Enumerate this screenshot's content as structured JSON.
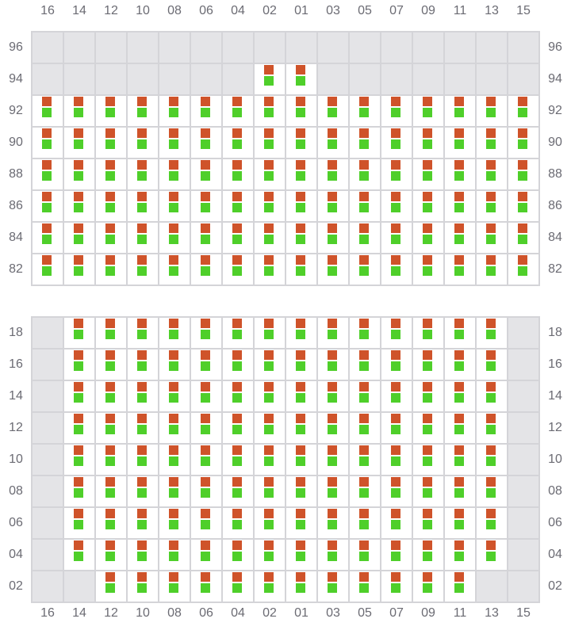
{
  "columns": [
    "16",
    "14",
    "12",
    "10",
    "08",
    "06",
    "04",
    "02",
    "01",
    "03",
    "05",
    "07",
    "09",
    "11",
    "13",
    "15"
  ],
  "colors": {
    "top_marker": "#cf532a",
    "bottom_marker": "#4fcf2a",
    "unavailable": "#e4e4e7",
    "available": "#ffffff"
  },
  "sections": [
    {
      "rows": [
        {
          "label": "96",
          "available": []
        },
        {
          "label": "94",
          "available": [
            "02",
            "01"
          ]
        },
        {
          "label": "92",
          "available": "all"
        },
        {
          "label": "90",
          "available": "all"
        },
        {
          "label": "88",
          "available": "all"
        },
        {
          "label": "86",
          "available": "all"
        },
        {
          "label": "84",
          "available": "all"
        },
        {
          "label": "82",
          "available": "all"
        }
      ]
    },
    {
      "rows": [
        {
          "label": "18",
          "available": [
            "14",
            "12",
            "10",
            "08",
            "06",
            "04",
            "02",
            "01",
            "03",
            "05",
            "07",
            "09",
            "11",
            "13"
          ]
        },
        {
          "label": "16",
          "available": [
            "14",
            "12",
            "10",
            "08",
            "06",
            "04",
            "02",
            "01",
            "03",
            "05",
            "07",
            "09",
            "11",
            "13"
          ]
        },
        {
          "label": "14",
          "available": [
            "14",
            "12",
            "10",
            "08",
            "06",
            "04",
            "02",
            "01",
            "03",
            "05",
            "07",
            "09",
            "11",
            "13"
          ]
        },
        {
          "label": "12",
          "available": [
            "14",
            "12",
            "10",
            "08",
            "06",
            "04",
            "02",
            "01",
            "03",
            "05",
            "07",
            "09",
            "11",
            "13"
          ]
        },
        {
          "label": "10",
          "available": [
            "14",
            "12",
            "10",
            "08",
            "06",
            "04",
            "02",
            "01",
            "03",
            "05",
            "07",
            "09",
            "11",
            "13"
          ]
        },
        {
          "label": "08",
          "available": [
            "14",
            "12",
            "10",
            "08",
            "06",
            "04",
            "02",
            "01",
            "03",
            "05",
            "07",
            "09",
            "11",
            "13"
          ]
        },
        {
          "label": "06",
          "available": [
            "14",
            "12",
            "10",
            "08",
            "06",
            "04",
            "02",
            "01",
            "03",
            "05",
            "07",
            "09",
            "11",
            "13"
          ]
        },
        {
          "label": "04",
          "available": [
            "14",
            "12",
            "10",
            "08",
            "06",
            "04",
            "02",
            "01",
            "03",
            "05",
            "07",
            "09",
            "11",
            "13"
          ]
        },
        {
          "label": "02",
          "available": [
            "12",
            "10",
            "08",
            "06",
            "04",
            "02",
            "01",
            "03",
            "05",
            "07",
            "09",
            "11"
          ]
        }
      ]
    }
  ]
}
